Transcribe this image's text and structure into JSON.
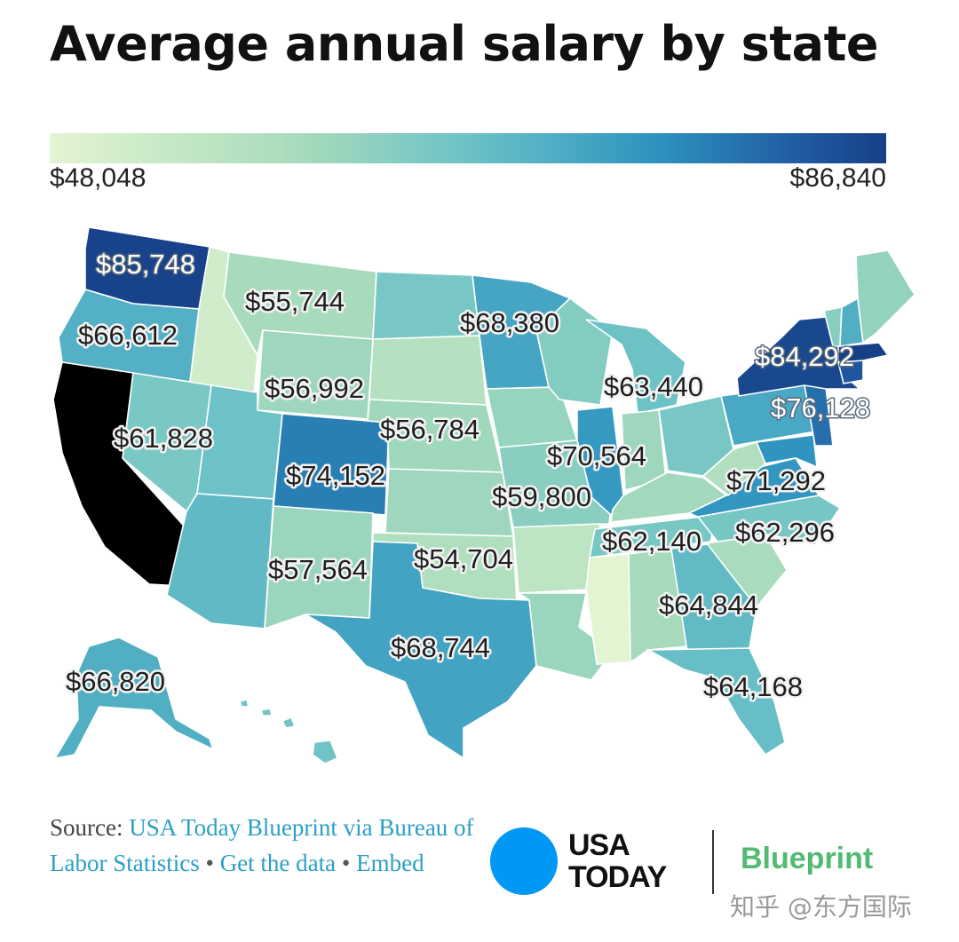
{
  "title": "Average annual salary by state",
  "legend": {
    "min_label": "$48,048",
    "max_label": "$86,840",
    "min_value": 48048,
    "max_value": 86840
  },
  "colors": {
    "scale": [
      "#e3f4d2",
      "#a7dbbb",
      "#6cc2c6",
      "#2f94c0",
      "#1f5aa0",
      "#173f86"
    ],
    "link": "#2b9fc6",
    "usa_today_blue": "#0097f5",
    "blueprint_green": "#52ba73"
  },
  "map_labels": [
    {
      "state": "Washington",
      "label": "$85,748",
      "value": 85748
    },
    {
      "state": "Montana",
      "label": "$55,744",
      "value": 55744
    },
    {
      "state": "Oregon",
      "label": "$66,612",
      "value": 66612
    },
    {
      "state": "Minnesota",
      "label": "$68,380",
      "value": 68380
    },
    {
      "state": "New York",
      "label": "$84,292",
      "value": 84292
    },
    {
      "state": "Michigan",
      "label": "$63,440",
      "value": 63440
    },
    {
      "state": "Wyoming",
      "label": "$56,992",
      "value": 56992
    },
    {
      "state": "New Jersey",
      "label": "$76,128",
      "value": 76128
    },
    {
      "state": "Nevada",
      "label": "$61,828",
      "value": 61828
    },
    {
      "state": "Nebraska",
      "label": "$56,784",
      "value": 56784
    },
    {
      "state": "Illinois",
      "label": "$70,564",
      "value": 70564
    },
    {
      "state": "Colorado",
      "label": "$74,152",
      "value": 74152
    },
    {
      "state": "Maryland",
      "label": "$71,292",
      "value": 71292
    },
    {
      "state": "Missouri",
      "label": "$59,800",
      "value": 59800
    },
    {
      "state": "Tennessee",
      "label": "$62,140",
      "value": 62140
    },
    {
      "state": "North Carolina",
      "label": "$62,296",
      "value": 62296
    },
    {
      "state": "New Mexico",
      "label": "$57,564",
      "value": 57564
    },
    {
      "state": "Oklahoma",
      "label": "$54,704",
      "value": 54704
    },
    {
      "state": "Georgia",
      "label": "$64,844",
      "value": 64844
    },
    {
      "state": "Texas",
      "label": "$68,744",
      "value": 68744
    },
    {
      "state": "Alaska",
      "label": "$66,820",
      "value": 66820
    },
    {
      "state": "Florida",
      "label": "$64,168",
      "value": 64168
    }
  ],
  "source": {
    "prefix": "Source:",
    "link_text": "USA Today Blueprint via Bureau of Labor Statistics",
    "get_data": "Get the data",
    "embed": "Embed",
    "separator": "•"
  },
  "branding": {
    "usa_today_line1": "USA",
    "usa_today_line2": "TODAY",
    "blueprint": "Blueprint"
  },
  "watermark": "知乎 @东方国际"
}
